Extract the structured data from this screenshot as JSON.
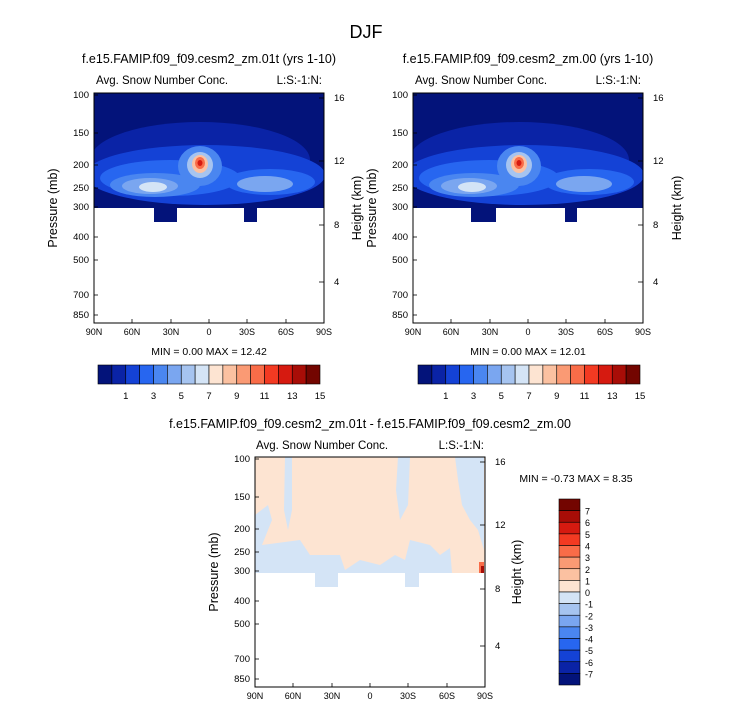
{
  "colors": {
    "scale": [
      "#03137a",
      "#0a23a6",
      "#1442d6",
      "#2766f0",
      "#4a86f0",
      "#7aa6f0",
      "#a6c4f0",
      "#d4e4f6",
      "#fde4d2",
      "#fbc1a1",
      "#fa9a74",
      "#f96c48",
      "#f33a22",
      "#d61a10",
      "#a80d07",
      "#730500"
    ]
  },
  "page": {
    "title": "DJF"
  },
  "chart_data": [
    {
      "type": "heatmap",
      "title": "f.e15.FAMIP.f09_f09.cesm2_zm.01t (yrs 1-10)",
      "subtitle_left": "Avg. Snow Number Conc.",
      "subtitle_right": "L:S:-1:N:",
      "ylabel": "Pressure (mb)",
      "ylabel_right": "Height (km)",
      "x_ticks": [
        "90N",
        "60N",
        "30N",
        "0",
        "30S",
        "60S",
        "90S"
      ],
      "y_ticks": [
        "100",
        "150",
        "200",
        "250",
        "300",
        "400",
        "500",
        "700",
        "850"
      ],
      "y_ticks_right": [
        "16",
        "12",
        "8",
        "4"
      ],
      "stats": "MIN =  0.00  MAX = 12.42",
      "colorbar_labels": [
        "1",
        "3",
        "5",
        "7",
        "9",
        "11",
        "13",
        "15"
      ]
    },
    {
      "type": "heatmap",
      "title": "f.e15.FAMIP.f09_f09.cesm2_zm.00 (yrs 1-10)",
      "subtitle_left": "Avg. Snow Number Conc.",
      "subtitle_right": "L:S:-1:N:",
      "ylabel": "Pressure (mb)",
      "ylabel_right": "Height (km)",
      "x_ticks": [
        "90N",
        "60N",
        "30N",
        "0",
        "30S",
        "60S",
        "90S"
      ],
      "y_ticks": [
        "100",
        "150",
        "200",
        "250",
        "300",
        "400",
        "500",
        "700",
        "850"
      ],
      "y_ticks_right": [
        "16",
        "12",
        "8",
        "4"
      ],
      "stats": "MIN =  0.00  MAX = 12.01",
      "colorbar_labels": [
        "1",
        "3",
        "5",
        "7",
        "9",
        "11",
        "13",
        "15"
      ]
    },
    {
      "type": "heatmap",
      "title": "f.e15.FAMIP.f09_f09.cesm2_zm.01t - f.e15.FAMIP.f09_f09.cesm2_zm.00",
      "subtitle_left": "Avg. Snow Number Conc.",
      "subtitle_right": "L:S:-1:N:",
      "ylabel": "Pressure (mb)",
      "ylabel_right": "Height (km)",
      "x_ticks": [
        "90N",
        "60N",
        "30N",
        "0",
        "30S",
        "60S",
        "90S"
      ],
      "y_ticks": [
        "100",
        "150",
        "200",
        "250",
        "300",
        "400",
        "500",
        "700",
        "850"
      ],
      "y_ticks_right": [
        "16",
        "12",
        "8",
        "4"
      ],
      "stats": "MIN =  -0.73  MAX =   8.35",
      "colorbar_labels": [
        "7",
        "6",
        "5",
        "4",
        "3",
        "2",
        "1",
        "0",
        "-1",
        "-2",
        "-3",
        "-4",
        "-5",
        "-6",
        "-7"
      ]
    }
  ]
}
